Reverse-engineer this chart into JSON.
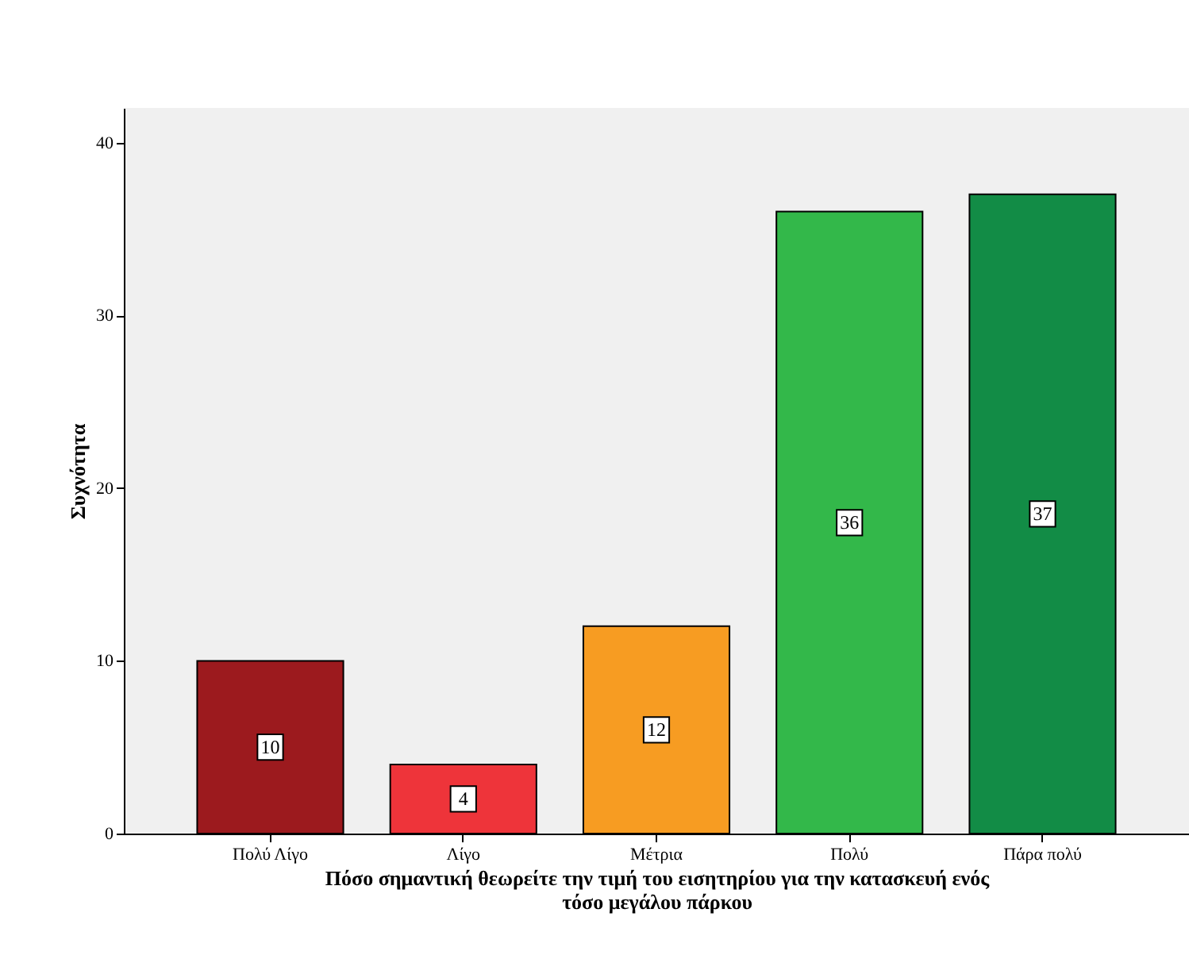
{
  "chart_data": {
    "type": "bar",
    "xlabel": "Πόσο σημαντική θεωρείτε την τιμή του εισητηρίου για την κατασκευή ενός τόσο μεγάλου πάρκου",
    "ylabel": "Συχνότητα",
    "categories": [
      "Πολύ Λίγο",
      "Λίγο",
      "Μέτρια",
      "Πολύ",
      "Πάρα πολύ"
    ],
    "values": [
      10,
      4,
      12,
      36,
      37
    ],
    "colors": [
      "#9c1a1e",
      "#ee343a",
      "#f79c22",
      "#33b84a",
      "#128c46"
    ],
    "ylim": [
      0,
      42
    ],
    "yticks": [
      0,
      10,
      20,
      30,
      40
    ],
    "data_labels": true
  }
}
